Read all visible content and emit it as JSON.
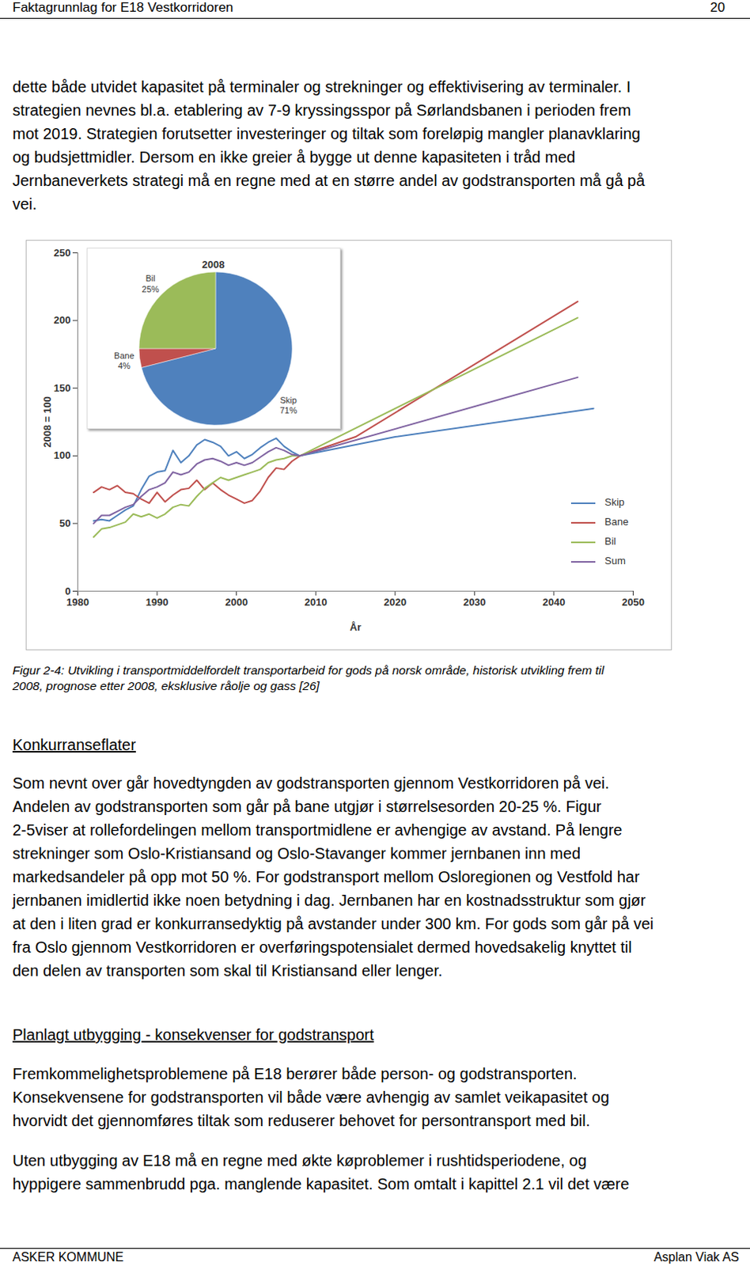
{
  "header": {
    "left": "Faktagrunnlag for E18 Vestkorridoren",
    "right": "20"
  },
  "sections": [
    {
      "lines": [
        "dette både utvidet kapasitet på terminaler og strekninger og effektivisering av terminaler. I",
        "strategien nevnes bl.a. etablering av 7-9 kryssingsspor på Sørlandsbanen i perioden frem",
        "mot 2019. Strategien forutsetter investeringer og tiltak som foreløpig mangler planavklaring",
        "og budsjettmidler. Dersom en ikke greier å bygge ut denne kapasiteten i tråd med",
        "Jernbaneverkets strategi må en regne med at en større andel av godstransporten må gå på",
        "vei."
      ]
    },
    {
      "heading": "Konkurranseflater",
      "lines": [
        "Som nevnt over går hovedtyngden av godstransporten gjennom Vestkorridoren på vei.",
        "Andelen av godstransporten som går på bane utgjør i størrelsesorden 20-25 %. Figur",
        "2-5viser at rollefordelingen mellom transportmidlene er avhengige av avstand. På lengre",
        "strekninger som Oslo-Kristiansand og Oslo-Stavanger kommer jernbanen inn med",
        "markedsandeler på opp mot 50 %. For godstransport mellom Osloregionen og Vestfold har",
        "jernbanen imidlertid ikke noen betydning i dag. Jernbanen har en kostnadsstruktur som gjør",
        "at den i liten grad er konkurransedyktig på avstander under 300 km. For gods som går på vei",
        "fra Oslo gjennom Vestkorridoren er overføringspotensialet dermed hovedsakelig knyttet til",
        "den delen av transporten som skal til Kristiansand eller lenger."
      ]
    },
    {
      "heading": "Planlagt utbygging - konsekvenser for godstransport",
      "lines": [
        "Fremkommelighetsproblemene på E18 berører både person- og godstransporten.",
        "Konsekvensene for godstransporten vil både være avhengig av samlet veikapasitet og",
        "hvorvidt det gjennomføres tiltak som reduserer behovet for persontransport med bil."
      ]
    },
    {
      "lines": [
        "Uten utbygging av E18 må en regne med økte køproblemer i rushtidsperiodene, og",
        "hyppigere sammenbrudd pga. manglende kapasitet. Som omtalt i kapittel 2.1 vil det være"
      ]
    }
  ],
  "chart_data": [
    {
      "type": "line",
      "x_label": "År",
      "y_label": "2008 = 100",
      "xlim": [
        1980,
        2050
      ],
      "xticks": [
        1980,
        1990,
        2000,
        2010,
        2020,
        2030,
        2040,
        2050
      ],
      "ylim": [
        0,
        250
      ],
      "yticks": [
        0,
        50,
        100,
        150,
        200,
        250
      ],
      "legend": "lower right",
      "series": [
        {
          "name": "Skip",
          "color": "#4f81bd",
          "x": [
            1982,
            1983,
            1984,
            1985,
            1986,
            1987,
            1988,
            1989,
            1990,
            1991,
            1992,
            1993,
            1994,
            1995,
            1996,
            1997,
            1998,
            1999,
            2000,
            2001,
            2002,
            2003,
            2004,
            2005,
            2006,
            2007,
            2008,
            2020,
            2045
          ],
          "values": [
            52,
            53,
            52,
            56,
            60,
            63,
            75,
            85,
            88,
            89,
            104,
            95,
            100,
            108,
            112,
            110,
            107,
            100,
            103,
            98,
            101,
            106,
            110,
            113,
            107,
            103,
            100,
            114,
            135
          ]
        },
        {
          "name": "Bane",
          "color": "#c0504d",
          "x": [
            1982,
            1983,
            1984,
            1985,
            1986,
            1987,
            1988,
            1989,
            1990,
            1991,
            1992,
            1993,
            1994,
            1995,
            1996,
            1997,
            1998,
            1999,
            2000,
            2001,
            2002,
            2003,
            2004,
            2005,
            2006,
            2007,
            2008,
            2015,
            2043
          ],
          "values": [
            73,
            77,
            75,
            78,
            73,
            72,
            68,
            65,
            73,
            66,
            71,
            75,
            76,
            82,
            75,
            80,
            75,
            71,
            68,
            65,
            67,
            74,
            84,
            91,
            90,
            96,
            100,
            114,
            214
          ]
        },
        {
          "name": "Bil",
          "color": "#9bbb59",
          "x": [
            1982,
            1983,
            1984,
            1985,
            1986,
            1987,
            1988,
            1989,
            1990,
            1991,
            1992,
            1993,
            1994,
            1995,
            1996,
            1997,
            1998,
            1999,
            2000,
            2001,
            2002,
            2003,
            2004,
            2005,
            2006,
            2007,
            2008,
            2043
          ],
          "values": [
            40,
            46,
            47,
            49,
            51,
            57,
            55,
            57,
            54,
            57,
            62,
            64,
            63,
            70,
            76,
            80,
            84,
            82,
            84,
            86,
            88,
            90,
            95,
            97,
            98,
            100,
            100,
            202
          ]
        },
        {
          "name": "Sum",
          "color": "#8064a2",
          "x": [
            1982,
            1983,
            1984,
            1985,
            1986,
            1987,
            1988,
            1989,
            1990,
            1991,
            1992,
            1993,
            1994,
            1995,
            1996,
            1997,
            1998,
            1999,
            2000,
            2001,
            2002,
            2003,
            2004,
            2005,
            2006,
            2007,
            2008,
            2043
          ],
          "values": [
            50,
            56,
            56,
            59,
            62,
            64,
            70,
            75,
            77,
            80,
            88,
            86,
            88,
            94,
            97,
            98,
            96,
            93,
            95,
            93,
            95,
            99,
            103,
            106,
            104,
            101,
            100,
            158
          ]
        }
      ]
    },
    {
      "type": "pie",
      "title": "2008",
      "categories": [
        "Skip",
        "Bane",
        "Bil"
      ],
      "values": [
        71,
        4,
        25
      ],
      "value_labels": [
        "71%",
        "4%",
        "25%"
      ],
      "colors": [
        "#4f81bd",
        "#c0504d",
        "#9bbb59"
      ],
      "data_labels": true
    }
  ],
  "caption": [
    "Figur 2-4: Utvikling i transportmiddelfordelt transportarbeid for gods på norsk område, historisk utvikling frem til",
    "2008, prognose etter 2008, eksklusive råolje og gass [26]"
  ],
  "footer": {
    "left": "ASKER KOMMUNE",
    "right": "Asplan Viak AS"
  }
}
